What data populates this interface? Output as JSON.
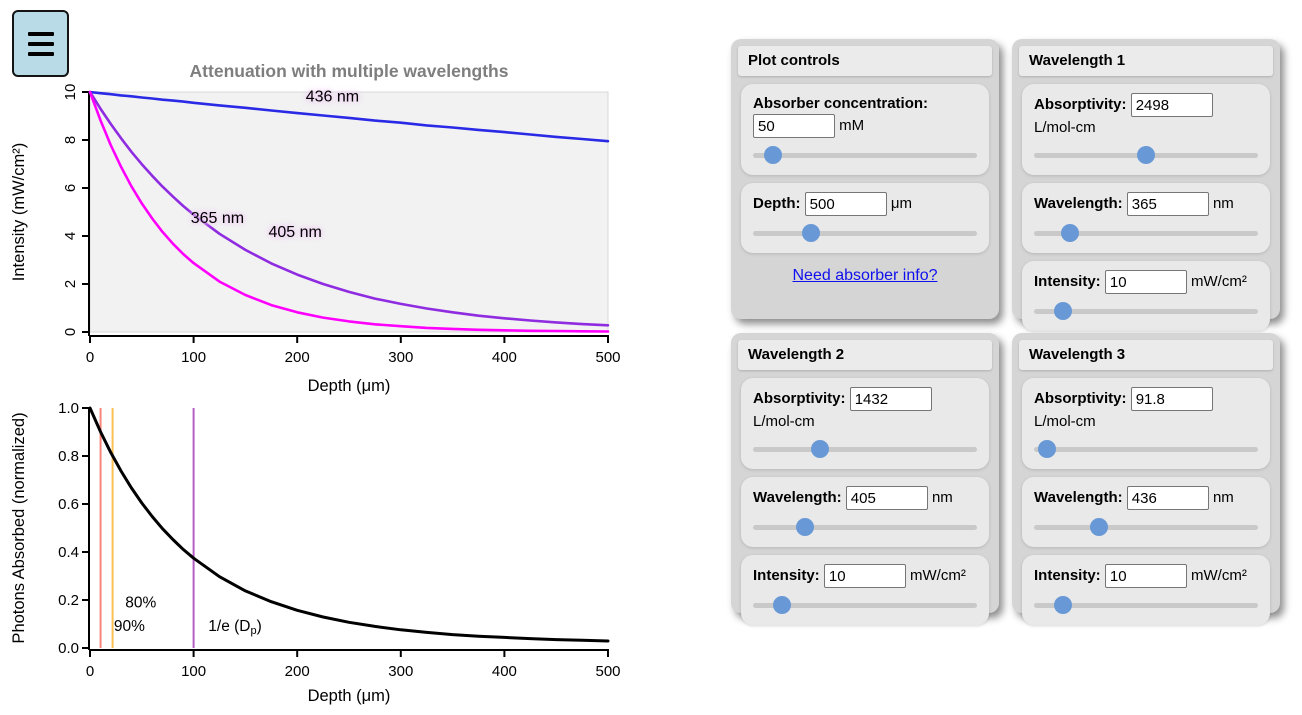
{
  "ui": {
    "menu_button": {
      "icon": "hamburger-menu-icon"
    }
  },
  "panels": {
    "plot_controls": {
      "title": "Plot controls",
      "concentration": {
        "label": "Absorber concentration:",
        "value": "50",
        "unit": "mM",
        "slider_pct": 9
      },
      "depth": {
        "label": "Depth:",
        "value": "500",
        "unit": "μm",
        "slider_pct": 26
      },
      "link_label": "Need absorber info?"
    },
    "wavelength1": {
      "title": "Wavelength 1",
      "absorptivity": {
        "label": "Absorptivity:",
        "value": "2498",
        "unit": "L/mol-cm",
        "slider_pct": 50
      },
      "wavelength": {
        "label": "Wavelength:",
        "value": "365",
        "unit": "nm",
        "slider_pct": 16
      },
      "intensity": {
        "label": "Intensity:",
        "value": "10",
        "unit": "mW/cm²",
        "slider_pct": 13
      }
    },
    "wavelength2": {
      "title": "Wavelength 2",
      "absorptivity": {
        "label": "Absorptivity:",
        "value": "1432",
        "unit": "L/mol-cm",
        "slider_pct": 30
      },
      "wavelength": {
        "label": "Wavelength:",
        "value": "405",
        "unit": "nm",
        "slider_pct": 23
      },
      "intensity": {
        "label": "Intensity:",
        "value": "10",
        "unit": "mW/cm²",
        "slider_pct": 13
      }
    },
    "wavelength3": {
      "title": "Wavelength 3",
      "absorptivity": {
        "label": "Absorptivity:",
        "value": "91.8",
        "unit": "L/mol-cm",
        "slider_pct": 6
      },
      "wavelength": {
        "label": "Wavelength:",
        "value": "436",
        "unit": "nm",
        "slider_pct": 29
      },
      "intensity": {
        "label": "Intensity:",
        "value": "10",
        "unit": "mW/cm²",
        "slider_pct": 13
      }
    }
  },
  "chart_data": [
    {
      "type": "line",
      "title": "Attenuation with multiple wavelengths",
      "xlabel": "Depth (μm)",
      "ylabel": "Intensity (mW/cm²)",
      "xlim": [
        0,
        500
      ],
      "ylim": [
        0,
        10
      ],
      "plot_bg": "#f2f2f2",
      "grid": false,
      "legend": "none",
      "xticks": {
        "values": [
          0,
          100,
          200,
          300,
          400,
          500
        ],
        "labels": [
          "0",
          "100",
          "200",
          "300",
          "400",
          "500"
        ]
      },
      "yticks": {
        "values": [
          0,
          2,
          4,
          6,
          8,
          10
        ],
        "labels": [
          "0",
          "2",
          "4",
          "6",
          "8",
          "10"
        ]
      },
      "x": [
        0,
        10,
        20,
        30,
        40,
        50,
        60,
        70,
        80,
        90,
        100,
        125,
        150,
        175,
        200,
        225,
        250,
        275,
        300,
        325,
        350,
        375,
        400,
        425,
        450,
        475,
        500
      ],
      "series": [
        {
          "name": "436 nm",
          "color": "#2a2ae6",
          "values": [
            10,
            9.95,
            9.91,
            9.86,
            9.82,
            9.77,
            9.73,
            9.68,
            9.64,
            9.6,
            9.55,
            9.44,
            9.34,
            9.23,
            9.12,
            9.02,
            8.92,
            8.81,
            8.72,
            8.61,
            8.52,
            8.42,
            8.33,
            8.23,
            8.13,
            8.04,
            7.95
          ]
        },
        {
          "name": "405 nm",
          "color": "#8f2be0",
          "values": [
            10,
            9.31,
            8.67,
            8.07,
            7.51,
            6.99,
            6.51,
            6.06,
            5.64,
            5.25,
            4.89,
            4.09,
            3.42,
            2.86,
            2.39,
            2.0,
            1.67,
            1.39,
            1.17,
            0.98,
            0.82,
            0.68,
            0.57,
            0.48,
            0.4,
            0.33,
            0.28
          ]
        },
        {
          "name": "365 nm",
          "color": "#ff00ff",
          "values": [
            10,
            8.83,
            7.79,
            6.88,
            6.07,
            5.36,
            4.73,
            4.17,
            3.68,
            3.25,
            2.87,
            2.1,
            1.54,
            1.12,
            0.82,
            0.6,
            0.44,
            0.32,
            0.24,
            0.17,
            0.13,
            0.09,
            0.07,
            0.05,
            0.04,
            0.03,
            0.02
          ]
        }
      ],
      "annotations": [
        {
          "text": "436 nm",
          "x": 234,
          "y": 9.6,
          "color": "#000000"
        },
        {
          "text": "365 nm",
          "x": 123,
          "y": 4.55,
          "color": "#000000"
        },
        {
          "text": "405 nm",
          "x": 198,
          "y": 3.95,
          "color": "#000000"
        }
      ]
    },
    {
      "type": "line",
      "title": "",
      "xlabel": "Depth (μm)",
      "ylabel": "Photons Absorbed (normalized)",
      "xlim": [
        0,
        500
      ],
      "ylim": [
        0,
        1
      ],
      "plot_bg": "#ffffff",
      "grid": false,
      "legend": "none",
      "xticks": {
        "values": [
          0,
          100,
          200,
          300,
          400,
          500
        ],
        "labels": [
          "0",
          "100",
          "200",
          "300",
          "400",
          "500"
        ]
      },
      "yticks": {
        "values": [
          0,
          0.2,
          0.4,
          0.6,
          0.8,
          1.0
        ],
        "labels": [
          "0.0",
          "0.2",
          "0.4",
          "0.6",
          "0.8",
          "1.0"
        ]
      },
      "x": [
        0,
        10,
        20,
        30,
        40,
        50,
        60,
        70,
        80,
        90,
        100,
        125,
        150,
        175,
        200,
        225,
        250,
        275,
        300,
        325,
        350,
        375,
        400,
        425,
        450,
        475,
        500
      ],
      "series": [
        {
          "name": "photons absorbed",
          "color": "#000000",
          "values": [
            1,
            0.902,
            0.815,
            0.737,
            0.667,
            0.604,
            0.548,
            0.497,
            0.452,
            0.411,
            0.374,
            0.297,
            0.238,
            0.193,
            0.157,
            0.129,
            0.107,
            0.09,
            0.076,
            0.065,
            0.056,
            0.049,
            0.044,
            0.039,
            0.035,
            0.032,
            0.029
          ]
        }
      ],
      "vlines": [
        {
          "x": 10.2,
          "color": "#f8847c",
          "label": "90%",
          "label_x": 38,
          "label_y": 0.071,
          "label_color": "#f9716b"
        },
        {
          "x": 21.8,
          "color": "#fdc053",
          "label": "80%",
          "label_x": 49,
          "label_y": 0.168,
          "label_color": "#fbb042"
        },
        {
          "x": 100,
          "color": "#b35ec4",
          "label": "1/e (D",
          "label_sub": "p",
          "label_end": ")",
          "label_x": 140,
          "label_y": 0.071,
          "label_color": "#7c1f99"
        }
      ]
    }
  ]
}
